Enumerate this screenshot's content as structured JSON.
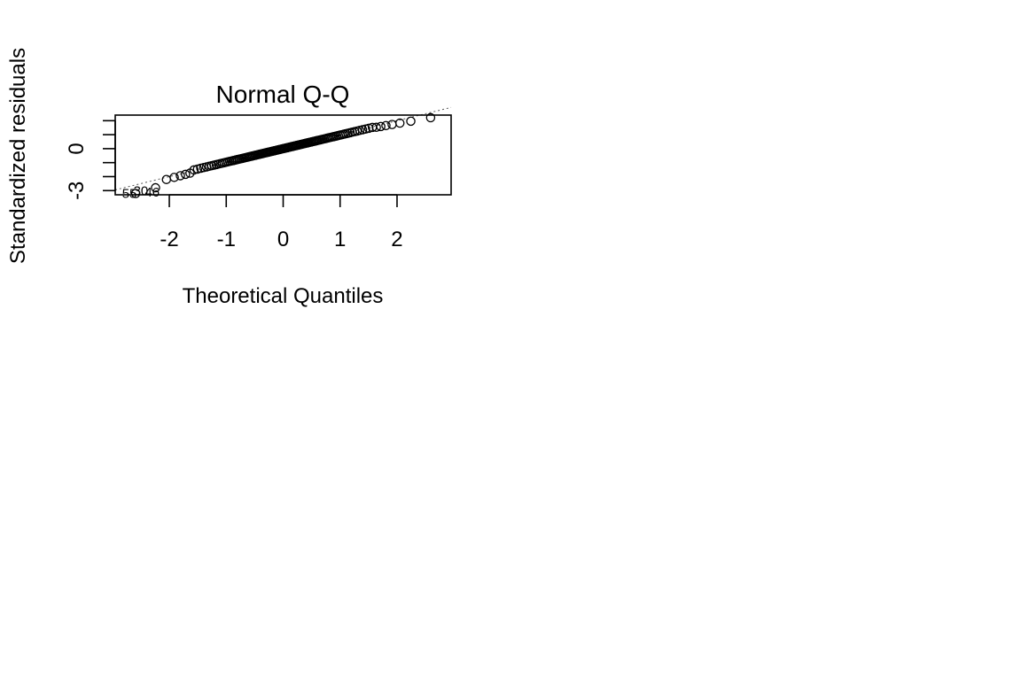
{
  "chart_data": {
    "type": "scatter",
    "title": "Normal Q-Q",
    "xlabel": "Theoretical Quantiles",
    "ylabel": "Standardized residuals",
    "xlim": [
      -2.95,
      2.95
    ],
    "ylim": [
      -3.3,
      2.4
    ],
    "x_ticks": [
      -2,
      -1,
      0,
      1,
      2
    ],
    "x_tick_labels": [
      "-2",
      "-1",
      "0",
      "1",
      "2"
    ],
    "y_ticks": [
      -3,
      -2,
      -1,
      0,
      1,
      2
    ],
    "y_tick_labels": [
      "-3",
      "0"
    ],
    "y_labeled_ticks": [
      -3,
      0
    ],
    "reference_line": {
      "style": "dotted",
      "slope": 1.0,
      "intercept": 0.0
    },
    "point_labels": [
      {
        "text": "55",
        "x": -2.7,
        "y": -3.2
      },
      {
        "text": "30",
        "x": -2.5,
        "y": -3.0
      },
      {
        "text": "46",
        "x": -2.3,
        "y": -3.1
      }
    ],
    "grid": false,
    "legend": "none",
    "n_points": 130
  }
}
